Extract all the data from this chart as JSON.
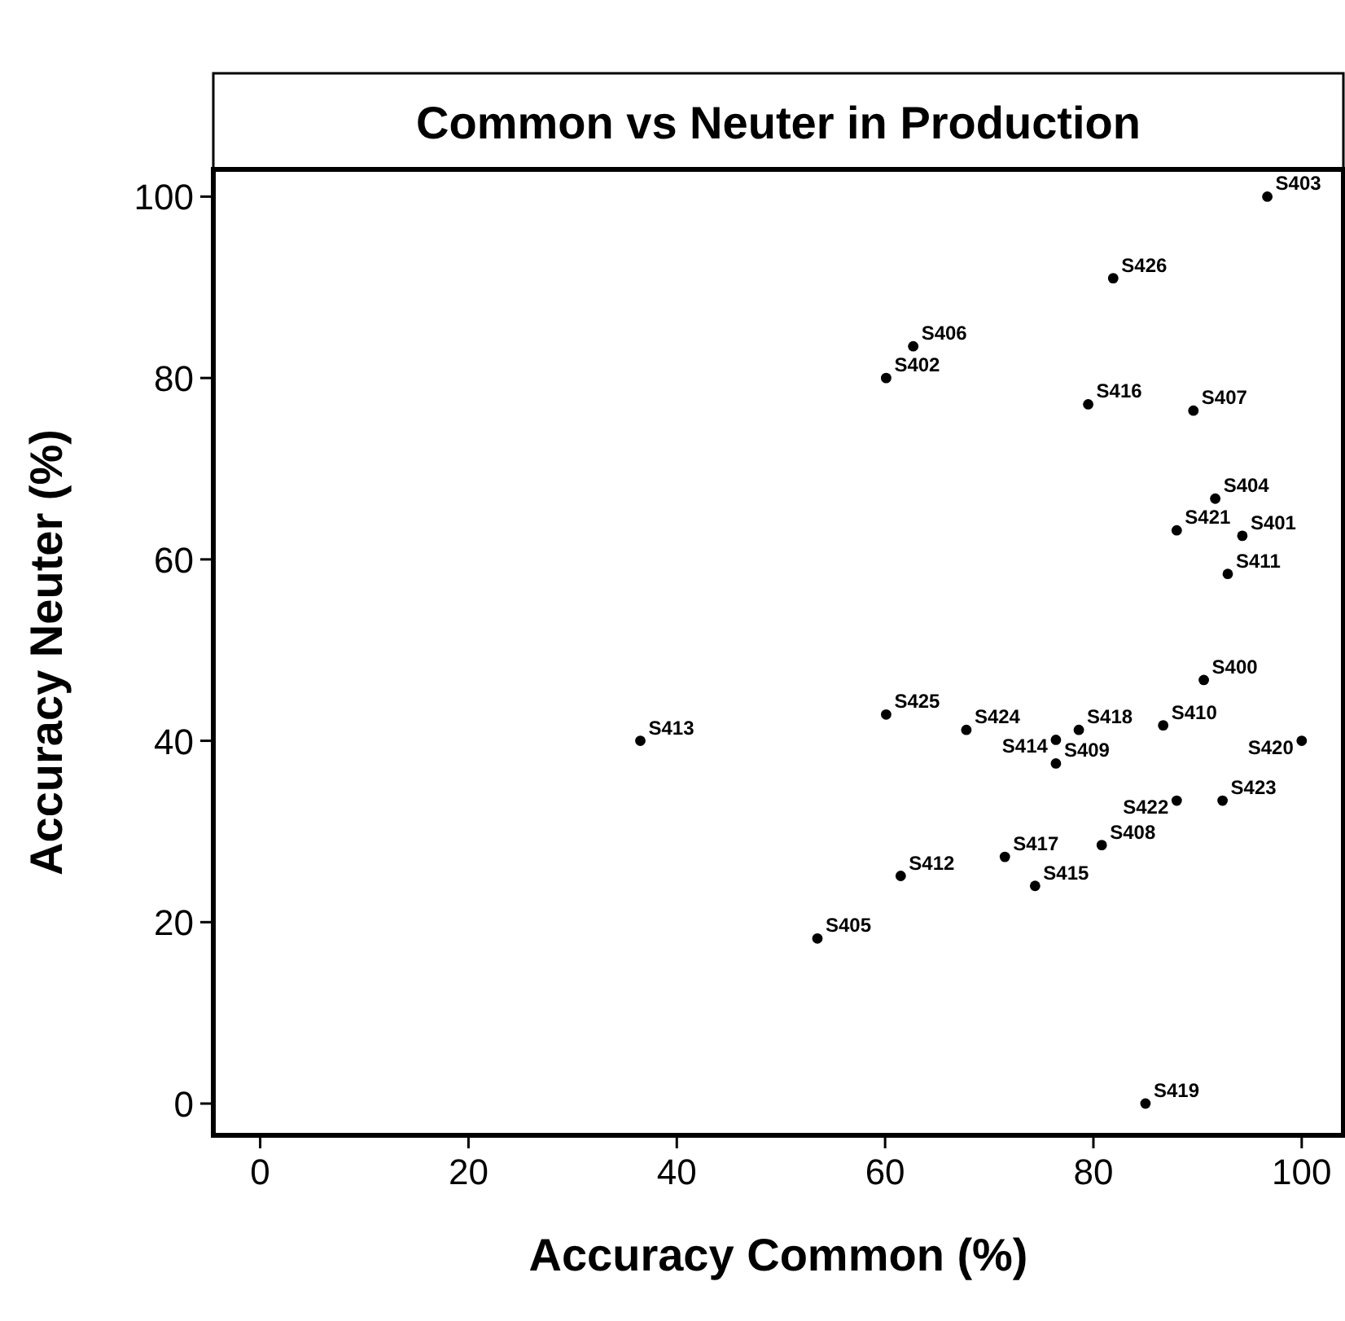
{
  "chart_data": {
    "type": "scatter",
    "title": "Common vs Neuter in Production",
    "xlabel": "Accuracy Common (%)",
    "ylabel": "Accuracy Neuter (%)",
    "xlim": [
      -4.5,
      104
    ],
    "ylim": [
      -3.5,
      103
    ],
    "xticks": [
      0,
      20,
      40,
      60,
      80,
      100
    ],
    "yticks": [
      0,
      20,
      40,
      60,
      80,
      100
    ],
    "marker": "circle",
    "series": [
      {
        "color": "#000000",
        "x": [
          96.7,
          81.9,
          62.7,
          60.1,
          79.5,
          89.6,
          91.7,
          88.0,
          94.3,
          92.9,
          90.6,
          36.5,
          60.1,
          67.8,
          78.6,
          86.7,
          76.4,
          76.4,
          100,
          88.0,
          92.4,
          80.8,
          71.5,
          61.5,
          74.4,
          53.5,
          85.0
        ],
        "values": [
          100,
          91.0,
          83.5,
          80.0,
          77.1,
          76.4,
          66.7,
          63.2,
          62.6,
          58.4,
          46.7,
          40.0,
          42.9,
          41.2,
          41.2,
          41.7,
          40.1,
          37.5,
          40.0,
          33.4,
          33.4,
          28.5,
          27.2,
          25.1,
          24.0,
          18.2,
          0
        ]
      }
    ],
    "annotations": [
      {
        "text": "S403",
        "x": 96.7,
        "y": 100
      },
      {
        "text": "S426",
        "x": 81.9,
        "y": 91.0
      },
      {
        "text": "S406",
        "x": 62.7,
        "y": 83.5
      },
      {
        "text": "S402",
        "x": 60.1,
        "y": 80.0
      },
      {
        "text": "S416",
        "x": 79.5,
        "y": 77.1
      },
      {
        "text": "S407",
        "x": 89.6,
        "y": 76.4
      },
      {
        "text": "S404",
        "x": 91.7,
        "y": 66.7
      },
      {
        "text": "S421",
        "x": 88.0,
        "y": 63.2
      },
      {
        "text": "S401",
        "x": 94.3,
        "y": 62.6
      },
      {
        "text": "S411",
        "x": 92.9,
        "y": 58.4
      },
      {
        "text": "S400",
        "x": 90.6,
        "y": 46.7
      },
      {
        "text": "S413",
        "x": 36.5,
        "y": 40.0
      },
      {
        "text": "S425",
        "x": 60.1,
        "y": 42.9
      },
      {
        "text": "S424",
        "x": 67.8,
        "y": 41.2
      },
      {
        "text": "S418",
        "x": 78.6,
        "y": 41.2
      },
      {
        "text": "S410",
        "x": 86.7,
        "y": 41.7
      },
      {
        "text": "S414",
        "x": 76.4,
        "y": 40.1
      },
      {
        "text": "S409",
        "x": 76.4,
        "y": 37.5
      },
      {
        "text": "S420",
        "x": 100,
        "y": 40.0
      },
      {
        "text": "S422",
        "x": 88.0,
        "y": 33.4
      },
      {
        "text": "S423",
        "x": 92.4,
        "y": 33.4
      },
      {
        "text": "S408",
        "x": 80.8,
        "y": 28.5
      },
      {
        "text": "S417",
        "x": 71.5,
        "y": 27.2
      },
      {
        "text": "S412",
        "x": 61.5,
        "y": 25.1
      },
      {
        "text": "S415",
        "x": 74.4,
        "y": 24.0
      },
      {
        "text": "S405",
        "x": 53.5,
        "y": 18.2
      },
      {
        "text": "S419",
        "x": 85.0,
        "y": 0
      }
    ]
  }
}
